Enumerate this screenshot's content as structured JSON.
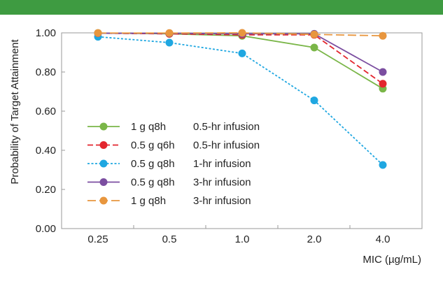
{
  "colors": {
    "top_bar": "#3e9b41"
  },
  "chart_data": {
    "type": "line",
    "categories": [
      "0.25",
      "0.5",
      "1.0",
      "2.0",
      "4.0"
    ],
    "xlabel": "MIC (µg/mL)",
    "ylabel": "Probability of Target Attainment",
    "yticks": [
      "0.00",
      "0.20",
      "0.40",
      "0.60",
      "0.80",
      "1.00"
    ],
    "ylim": [
      0,
      1
    ],
    "legend_position": "left",
    "grid": false,
    "series": [
      {
        "name": "1 g q8h",
        "regimen": "0.5-hr infusion",
        "color": "#7ab648",
        "dash": "solid",
        "values": [
          0.999,
          0.995,
          0.985,
          0.925,
          0.715
        ]
      },
      {
        "name": "0.5 g q6h",
        "regimen": "0.5-hr infusion",
        "color": "#e3262e",
        "dash": "dashed",
        "values": [
          0.998,
          0.995,
          0.99,
          0.99,
          0.74
        ]
      },
      {
        "name": "0.5 g q8h",
        "regimen": "1-hr infusion",
        "color": "#1fa7e1",
        "dash": "dotted",
        "values": [
          0.98,
          0.95,
          0.895,
          0.655,
          0.325
        ]
      },
      {
        "name": "0.5 g q8h",
        "regimen": "3-hr infusion",
        "color": "#7b4ea0",
        "dash": "solid",
        "values": [
          0.998,
          0.998,
          0.995,
          0.995,
          0.8
        ]
      },
      {
        "name": "1 g q8h",
        "regimen": "3-hr infusion",
        "color": "#e8963e",
        "dash": "longdash",
        "values": [
          0.999,
          0.999,
          1.0,
          0.992,
          0.985
        ]
      }
    ]
  }
}
